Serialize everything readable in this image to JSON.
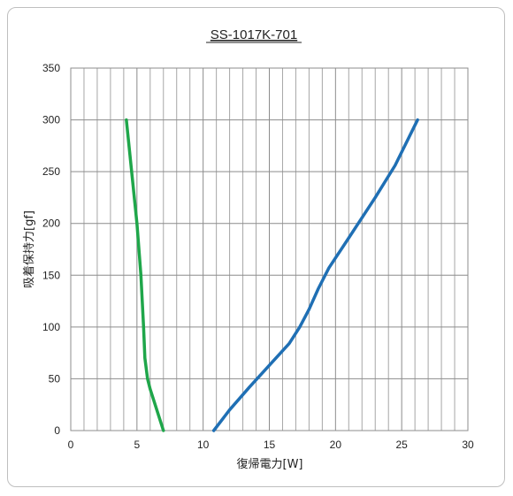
{
  "chart_data": {
    "type": "line",
    "title": "SS-1017K-701",
    "xlabel": "復帰電力[W]",
    "ylabel": "吸着保持力[gf]",
    "xlim": [
      0,
      30
    ],
    "ylim": [
      0,
      350
    ],
    "xticks": [
      0,
      5,
      10,
      15,
      20,
      25,
      30
    ],
    "yticks": [
      0,
      50,
      100,
      150,
      200,
      250,
      300,
      350
    ],
    "x_minor_step": 1,
    "grid": true,
    "series": [
      {
        "color": "#1fa64a",
        "points": [
          [
            4.2,
            300
          ],
          [
            4.6,
            250
          ],
          [
            5.0,
            200
          ],
          [
            5.3,
            150
          ],
          [
            5.5,
            100
          ],
          [
            5.6,
            70
          ],
          [
            5.8,
            50
          ],
          [
            6.0,
            40
          ],
          [
            6.5,
            20
          ],
          [
            7.0,
            0
          ]
        ]
      },
      {
        "color": "#1f6fb4",
        "points": [
          [
            10.8,
            0
          ],
          [
            12.0,
            20
          ],
          [
            13.5,
            42
          ],
          [
            15.0,
            63
          ],
          [
            16.5,
            84
          ],
          [
            17.3,
            100
          ],
          [
            18.0,
            117
          ],
          [
            18.7,
            137
          ],
          [
            19.5,
            157
          ],
          [
            21.0,
            186
          ],
          [
            23.0,
            225
          ],
          [
            24.5,
            256
          ],
          [
            26.2,
            300
          ]
        ]
      }
    ]
  }
}
